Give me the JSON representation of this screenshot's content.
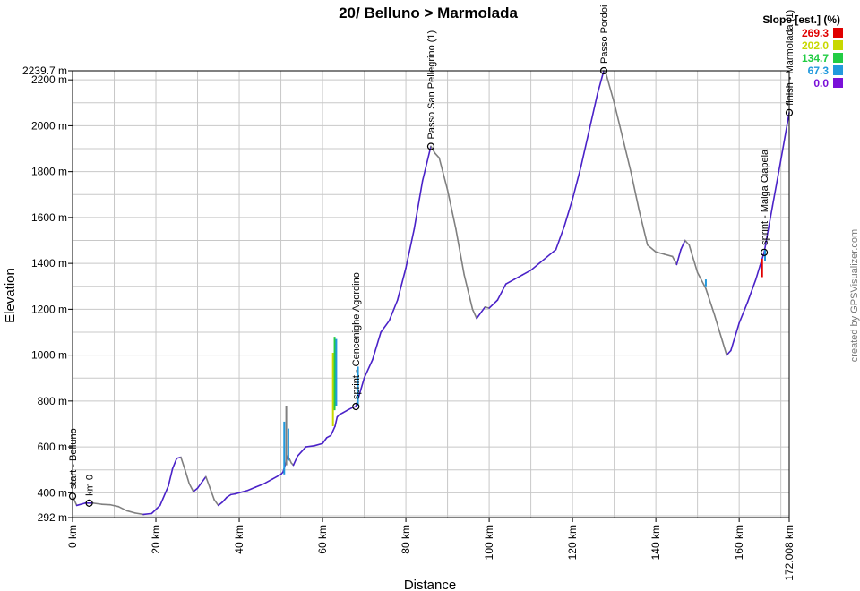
{
  "chart_data": {
    "type": "line",
    "title": "20/ Belluno > Marmolada",
    "xlabel": "Distance",
    "ylabel": "Elevation",
    "xlim": [
      0,
      172.008
    ],
    "ylim": [
      292,
      2239.7
    ],
    "x_ticks": [
      {
        "value": 0,
        "label": "0 km"
      },
      {
        "value": 20,
        "label": "20 km"
      },
      {
        "value": 40,
        "label": "40 km"
      },
      {
        "value": 60,
        "label": "60 km"
      },
      {
        "value": 80,
        "label": "80 km"
      },
      {
        "value": 100,
        "label": "100 km"
      },
      {
        "value": 120,
        "label": "120 km"
      },
      {
        "value": 140,
        "label": "140 km"
      },
      {
        "value": 160,
        "label": "160 km"
      },
      {
        "value": 172.008,
        "label": "172.008 km"
      }
    ],
    "y_ticks": [
      {
        "value": 292,
        "label": "292 m"
      },
      {
        "value": 400,
        "label": "400 m"
      },
      {
        "value": 600,
        "label": "600 m"
      },
      {
        "value": 800,
        "label": "800 m"
      },
      {
        "value": 1000,
        "label": "1000 m"
      },
      {
        "value": 1200,
        "label": "1200 m"
      },
      {
        "value": 1400,
        "label": "1400 m"
      },
      {
        "value": 1600,
        "label": "1600 m"
      },
      {
        "value": 1800,
        "label": "1800 m"
      },
      {
        "value": 2000,
        "label": "2000 m"
      },
      {
        "value": 2200,
        "label": "2200 m"
      },
      {
        "value": 2239.7,
        "label": "2239.7 m"
      }
    ],
    "grid": true,
    "credit": "created by GPSVisualizer.com",
    "legend": {
      "title": "Slope [est.] (%)",
      "placement": "top-right",
      "entries": [
        {
          "label": "269.3",
          "color": "#e00000"
        },
        {
          "label": "202.0",
          "color": "#c8d800"
        },
        {
          "label": "134.7",
          "color": "#22cc44"
        },
        {
          "label": "67.3",
          "color": "#2299dd"
        },
        {
          "label": "0.0",
          "color": "#7a10d8"
        }
      ]
    },
    "colors": {
      "climb": "#4a22c8",
      "descent": "#808080",
      "grid": "#c8c8c8"
    },
    "waypoints": [
      {
        "x": 0,
        "y": 385,
        "label": "start - Belluno"
      },
      {
        "x": 4,
        "y": 355,
        "label": "km 0"
      },
      {
        "x": 68,
        "y": 776,
        "label": "sprint - Cencenighe Agordino"
      },
      {
        "x": 86,
        "y": 1910,
        "label": "Passo San Pellegrino (1)"
      },
      {
        "x": 127.5,
        "y": 2239.7,
        "label": "Passo Pordoi"
      },
      {
        "x": 166,
        "y": 1448,
        "label": "sprint - Malga Ciapela"
      },
      {
        "x": 172.008,
        "y": 2057,
        "label": "finish - Marmolada (1)"
      }
    ],
    "series": [
      {
        "x": [
          0,
          1,
          3,
          5,
          7,
          9,
          11,
          13,
          15,
          17,
          19,
          21,
          23,
          24,
          25,
          26,
          27,
          28,
          29,
          30,
          31,
          32,
          33,
          34,
          35,
          36,
          37,
          38,
          39,
          40,
          42,
          44,
          46,
          48,
          50,
          50.5,
          51,
          51.3,
          51.6,
          52,
          52.5,
          53,
          54,
          56,
          58,
          60,
          61,
          62,
          62.5,
          63,
          63.5,
          64,
          65,
          66,
          67,
          68,
          70,
          72,
          74,
          76,
          78,
          80,
          82,
          84,
          86,
          87,
          88,
          90,
          92,
          94,
          96,
          97,
          98,
          99,
          100,
          102,
          104,
          106,
          108,
          110,
          112,
          114,
          116,
          118,
          120,
          122,
          124,
          126,
          127.5,
          128,
          130,
          132,
          134,
          136,
          138,
          140,
          142,
          144,
          145,
          146,
          147,
          148,
          150,
          152,
          154,
          156,
          157,
          158,
          160,
          162,
          164,
          165,
          166,
          168,
          170,
          172.008
        ],
        "y": [
          385,
          345,
          355,
          355,
          350,
          348,
          340,
          322,
          312,
          306,
          310,
          345,
          430,
          505,
          550,
          555,
          500,
          440,
          405,
          420,
          445,
          470,
          420,
          370,
          345,
          360,
          380,
          392,
          395,
          400,
          410,
          425,
          440,
          460,
          480,
          490,
          520,
          540,
          560,
          550,
          530,
          520,
          560,
          600,
          605,
          615,
          640,
          650,
          670,
          690,
          730,
          740,
          750,
          760,
          770,
          776,
          900,
          980,
          1100,
          1150,
          1240,
          1380,
          1550,
          1760,
          1910,
          1880,
          1860,
          1720,
          1550,
          1350,
          1200,
          1160,
          1185,
          1210,
          1205,
          1240,
          1310,
          1330,
          1350,
          1370,
          1400,
          1430,
          1460,
          1560,
          1680,
          1820,
          1980,
          2140,
          2239.7,
          2230,
          2100,
          1950,
          1800,
          1630,
          1480,
          1450,
          1440,
          1430,
          1395,
          1460,
          1500,
          1480,
          1360,
          1290,
          1180,
          1060,
          1000,
          1020,
          1140,
          1230,
          1330,
          1390,
          1448,
          1650,
          1850,
          2057
        ]
      }
    ]
  }
}
